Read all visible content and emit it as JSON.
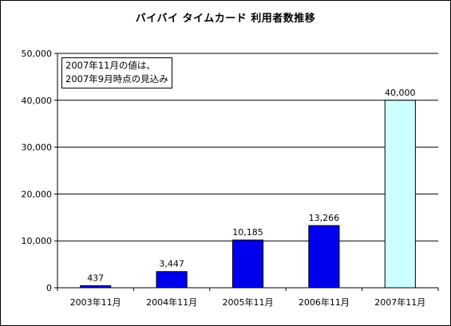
{
  "chart_data": {
    "type": "bar",
    "title": "バイバイ タイムカード 利用者数推移",
    "categories": [
      "2003年11月",
      "2004年11月",
      "2005年11月",
      "2006年11月",
      "2007年11月"
    ],
    "values": [
      437,
      3447,
      10185,
      13266,
      40000
    ],
    "value_labels": [
      "437",
      "3,447",
      "10,185",
      "13,266",
      "40,000"
    ],
    "y_ticks": [
      0,
      10000,
      20000,
      30000,
      40000,
      50000
    ],
    "y_tick_labels": [
      "0",
      "10,000",
      "20,000",
      "30,000",
      "40,000",
      "50,000"
    ],
    "ylim": [
      0,
      50000
    ],
    "grid": true,
    "xlabel": "",
    "ylabel": "",
    "bar_colors": [
      "#0000ee",
      "#0000ee",
      "#0000ee",
      "#0000ee",
      "#ccffff"
    ],
    "annotation": {
      "lines": [
        "2007年11月の値は、",
        "2007年9月時点の見込み"
      ]
    }
  }
}
